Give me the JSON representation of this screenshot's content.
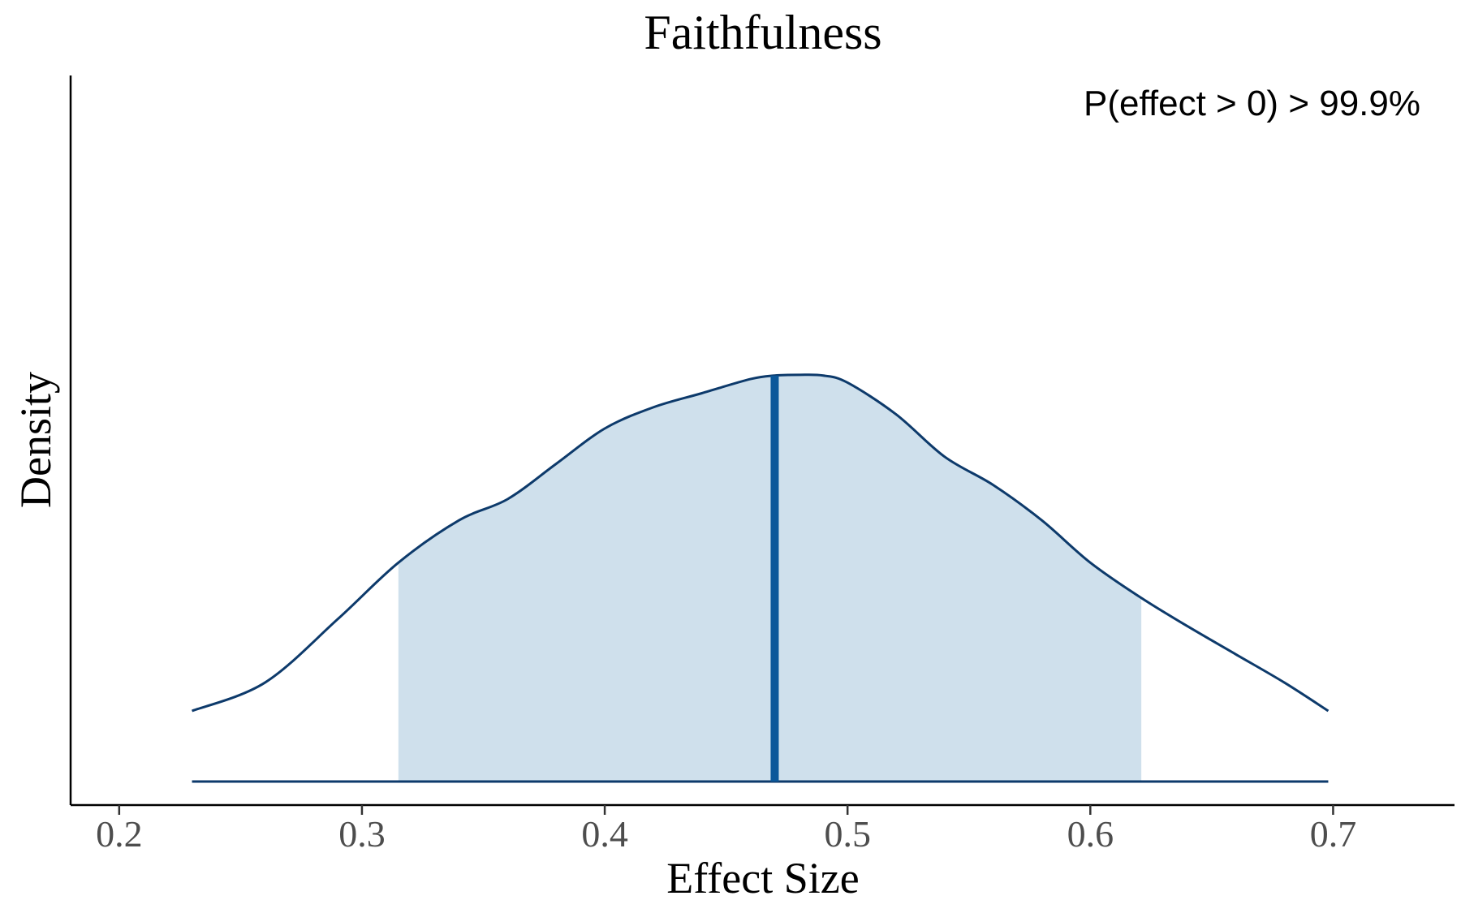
{
  "chart_data": {
    "type": "area",
    "title": "Faithfulness",
    "xlabel": "Effect Size",
    "ylabel": "Density",
    "xlim": [
      0.18,
      0.75
    ],
    "ylim": [
      0,
      1.0
    ],
    "x_ticks": [
      0.2,
      0.3,
      0.4,
      0.5,
      0.6,
      0.7
    ],
    "x_tick_labels": [
      "0.2",
      "0.3",
      "0.4",
      "0.5",
      "0.6",
      "0.7"
    ],
    "y_ticks_shown": false,
    "grid": false,
    "annotation": "P(effect > 0) > 99.9%",
    "annotation_position": "top-right",
    "series": [
      {
        "x": [
          0.23,
          0.26,
          0.29,
          0.315,
          0.34,
          0.36,
          0.38,
          0.4,
          0.42,
          0.44,
          0.46,
          0.47,
          0.48,
          0.49,
          0.5,
          0.52,
          0.54,
          0.56,
          0.58,
          0.6,
          0.621,
          0.64,
          0.66,
          0.68,
          0.698
        ],
        "y": [
          0.1,
          0.14,
          0.23,
          0.31,
          0.37,
          0.4,
          0.45,
          0.5,
          0.53,
          0.55,
          0.57,
          0.575,
          0.576,
          0.575,
          0.565,
          0.52,
          0.46,
          0.42,
          0.37,
          0.31,
          0.26,
          0.22,
          0.18,
          0.14,
          0.1
        ]
      }
    ],
    "interval": [
      0.315,
      0.621
    ],
    "median": 0.47,
    "colors": {
      "curve": "#0d3a6b",
      "fill": "#cfe0ec",
      "median_line": "#0b5799",
      "axis": "#000000"
    }
  }
}
